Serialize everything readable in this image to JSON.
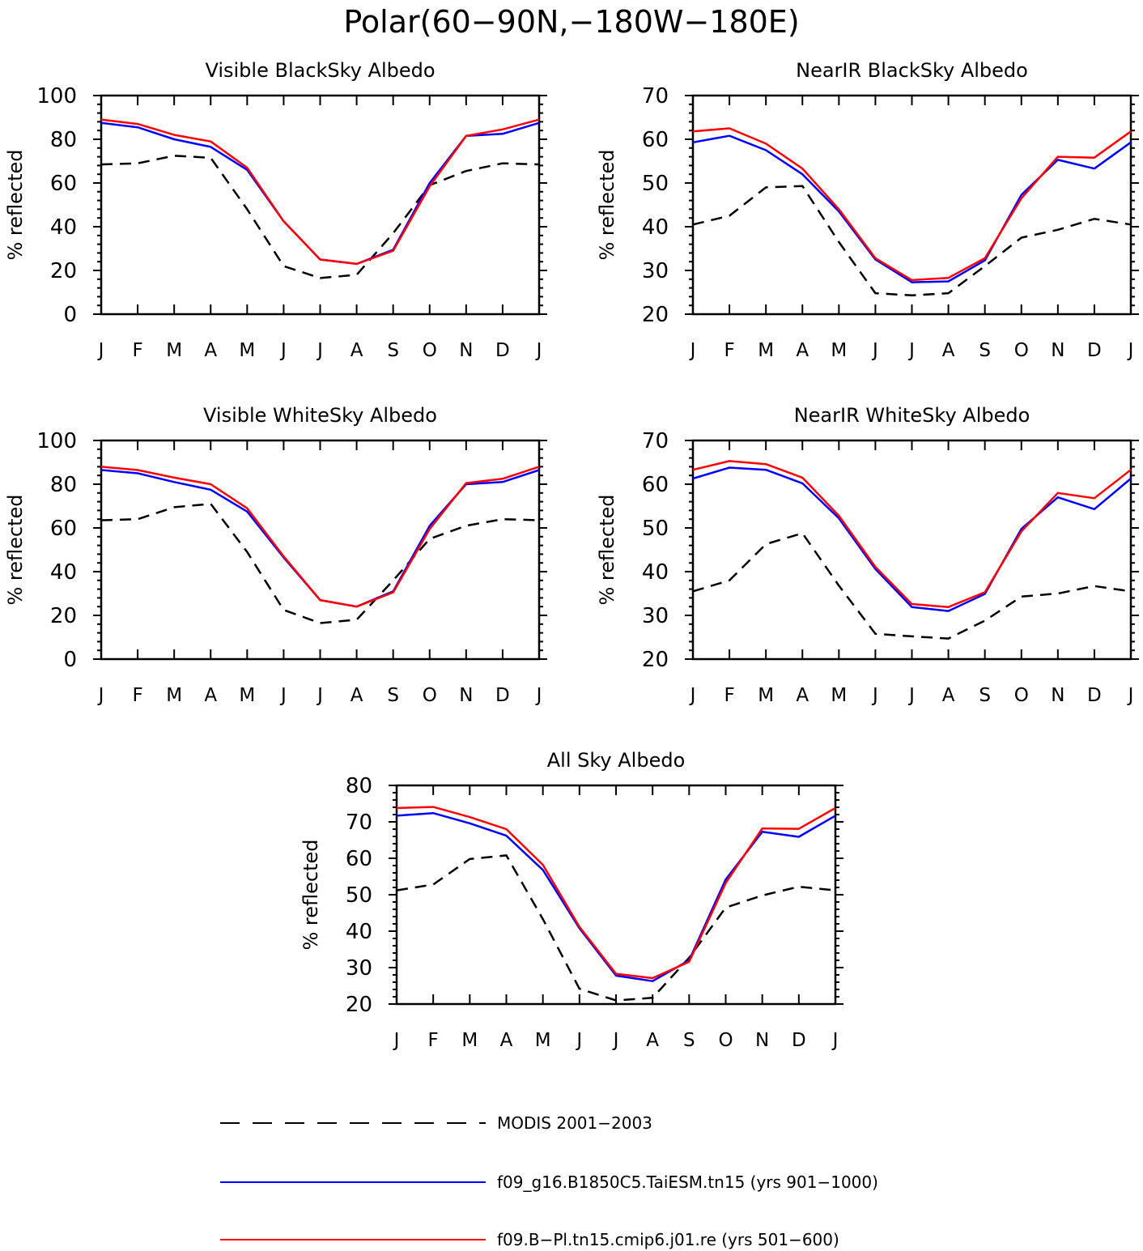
{
  "page_title": "Polar(60−90N,−180W−180E)",
  "legend": {
    "placement": "bottom",
    "entries": [
      {
        "label": "MODIS 2001−2003",
        "color": "#000000",
        "dashed": true
      },
      {
        "label": "f09_g16.B1850C5.TaiESM.tn15 (yrs 901−1000)",
        "color": "#0000ff",
        "dashed": false
      },
      {
        "label": "f09.B−Pl.tn15.cmip6.j01.re (yrs 501−600)",
        "color": "#ff0000",
        "dashed": false
      }
    ]
  },
  "chart_data": [
    {
      "type": "line",
      "title": "Visible BlackSky Albedo",
      "xlabel": "",
      "ylabel": "% reflected",
      "categories": [
        "J",
        "F",
        "M",
        "A",
        "M",
        "J",
        "J",
        "A",
        "S",
        "O",
        "N",
        "D",
        "J"
      ],
      "ylim": [
        0,
        100
      ],
      "yticks": [
        0,
        20,
        40,
        60,
        80,
        100
      ],
      "series": [
        {
          "values": [
            68.5,
            69,
            72.5,
            71.5,
            48,
            22,
            16.5,
            18,
            37,
            59,
            65.5,
            69,
            68.5
          ]
        },
        {
          "values": [
            87.5,
            85.5,
            80,
            76.5,
            66,
            42.5,
            25,
            23,
            29.5,
            60,
            81.5,
            82.5,
            87.5
          ]
        },
        {
          "values": [
            89,
            87,
            82,
            79,
            67,
            42.5,
            25,
            23,
            29,
            58.5,
            81.5,
            84.5,
            89
          ]
        }
      ]
    },
    {
      "type": "line",
      "title": "NearIR BlackSky Albedo",
      "xlabel": "",
      "ylabel": "% reflected",
      "categories": [
        "J",
        "F",
        "M",
        "A",
        "M",
        "J",
        "J",
        "A",
        "S",
        "O",
        "N",
        "D",
        "J"
      ],
      "ylim": [
        20,
        70
      ],
      "yticks": [
        20,
        30,
        40,
        50,
        60,
        70
      ],
      "series": [
        {
          "values": [
            40.5,
            42.5,
            49,
            49.3,
            36.5,
            24.8,
            24.3,
            24.8,
            31,
            37.5,
            39.3,
            41.8,
            40.5
          ]
        },
        {
          "values": [
            59.3,
            60.8,
            57.5,
            52,
            43.5,
            32.5,
            27.3,
            27.5,
            32.3,
            47.3,
            55.3,
            53.3,
            59.3
          ]
        },
        {
          "values": [
            61.8,
            62.5,
            59,
            53.3,
            44,
            32.8,
            27.8,
            28.3,
            32.8,
            46.5,
            56,
            55.8,
            61.8
          ]
        }
      ]
    },
    {
      "type": "line",
      "title": "Visible WhiteSky Albedo",
      "xlabel": "",
      "ylabel": "% reflected",
      "categories": [
        "J",
        "F",
        "M",
        "A",
        "M",
        "J",
        "J",
        "A",
        "S",
        "O",
        "N",
        "D",
        "J"
      ],
      "ylim": [
        0,
        100
      ],
      "yticks": [
        0,
        20,
        40,
        60,
        80,
        100
      ],
      "series": [
        {
          "values": [
            63.5,
            64,
            69.5,
            71,
            49,
            22.5,
            16.5,
            18,
            36,
            55,
            61,
            64,
            63.5
          ]
        },
        {
          "values": [
            86.5,
            85,
            81,
            77.5,
            67.5,
            46.5,
            27,
            24,
            31,
            61,
            80,
            81,
            86.5
          ]
        },
        {
          "values": [
            88,
            86.5,
            83,
            80,
            69,
            47,
            27,
            24,
            30.5,
            59.5,
            80.5,
            82.5,
            88
          ]
        }
      ]
    },
    {
      "type": "line",
      "title": "NearIR WhiteSky Albedo",
      "xlabel": "",
      "ylabel": "% reflected",
      "categories": [
        "J",
        "F",
        "M",
        "A",
        "M",
        "J",
        "J",
        "A",
        "S",
        "O",
        "N",
        "D",
        "J"
      ],
      "ylim": [
        20,
        70
      ],
      "yticks": [
        20,
        30,
        40,
        50,
        60,
        70
      ],
      "series": [
        {
          "values": [
            35.5,
            38,
            46.3,
            48.8,
            36.8,
            25.8,
            25.2,
            24.7,
            28.8,
            34.3,
            35,
            36.7,
            35.5
          ]
        },
        {
          "values": [
            61.3,
            63.8,
            63.3,
            60.2,
            52.2,
            40.6,
            31.9,
            31,
            34.9,
            49.8,
            57,
            54.3,
            61.3
          ]
        },
        {
          "values": [
            63.3,
            65.3,
            64.6,
            61.5,
            52.8,
            41.1,
            32.6,
            31.9,
            35.3,
            49.2,
            58,
            56.8,
            63.3
          ]
        }
      ]
    },
    {
      "type": "line",
      "title": "All Sky Albedo",
      "xlabel": "",
      "ylabel": "% reflected",
      "categories": [
        "J",
        "F",
        "M",
        "A",
        "M",
        "J",
        "J",
        "A",
        "S",
        "O",
        "N",
        "D",
        "J"
      ],
      "ylim": [
        20,
        80
      ],
      "yticks": [
        20,
        30,
        40,
        50,
        60,
        70,
        80
      ],
      "series": [
        {
          "values": [
            51.2,
            52.8,
            59.8,
            60.8,
            43.3,
            24.2,
            21,
            21.7,
            32.7,
            46.5,
            49.8,
            52.2,
            51.2
          ]
        },
        {
          "values": [
            71.7,
            72.4,
            69.6,
            66.2,
            56.8,
            40.8,
            27.8,
            26.3,
            32,
            54.2,
            67.3,
            65.9,
            71.7
          ]
        },
        {
          "values": [
            73.8,
            74.1,
            71.3,
            68,
            58.2,
            41.2,
            28.3,
            27.1,
            31.6,
            53.2,
            68.2,
            68.1,
            73.8
          ]
        }
      ]
    }
  ]
}
